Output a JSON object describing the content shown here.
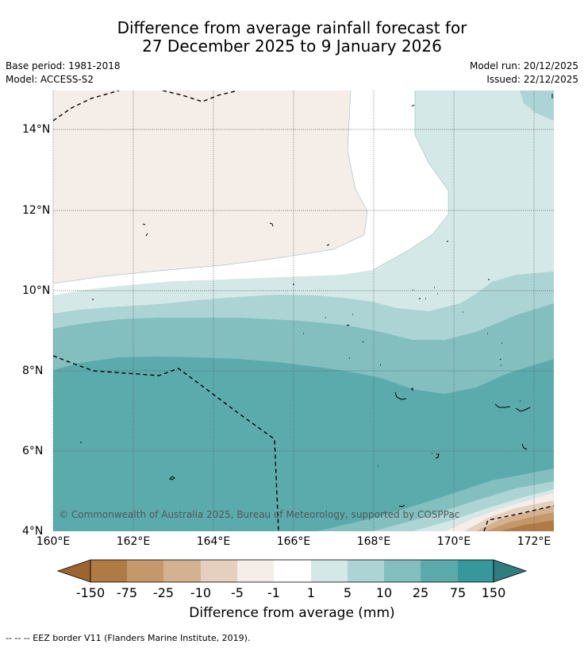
{
  "title": {
    "line1": "Difference from average rainfall forecast for",
    "line2": "27 December 2025 to 9 January 2026"
  },
  "meta": {
    "base_period": "Base period: 1981-2018",
    "model": "Model: ACCESS-S2",
    "model_run": "Model run: 20/12/2025",
    "issued": "Issued: 22/12/2025"
  },
  "map": {
    "lat_labels": [
      "14°N",
      "12°N",
      "10°N",
      "8°N",
      "6°N",
      "4°N"
    ],
    "lon_labels": [
      "160°E",
      "162°E",
      "164°E",
      "166°E",
      "168°E",
      "170°E",
      "172°E"
    ],
    "copyright": "© Commonwealth of Australia 2025, Bureau of Meteorology, supported by COSPPac",
    "band_colors": {
      "dry_75_150": "#b07a45",
      "dry_25_75": "#c4986b",
      "dry_10_25": "#d4b191",
      "dry_5_10": "#e5d0bf",
      "dry_1_5": "#f4ede8",
      "neutral": "#ffffff",
      "wet_1_5": "#d4e8e7",
      "wet_5_10": "#acd4d4",
      "wet_10_25": "#83bfbf",
      "wet_25_75": "#5babad"
    }
  },
  "colorbar": {
    "labels": [
      "-150",
      "-75",
      "-25",
      "-10",
      "-5",
      "-1",
      "1",
      "5",
      "10",
      "25",
      "75",
      "150"
    ],
    "colors": [
      "#9b6430",
      "#b07a45",
      "#c4986b",
      "#d4b191",
      "#e5d0bf",
      "#f4ede8",
      "#ffffff",
      "#d4e8e7",
      "#acd4d4",
      "#83bfbf",
      "#5babad",
      "#36989a",
      "#2f7d7f"
    ],
    "title": "Difference from average (mm)"
  },
  "legend": {
    "eez": "--  --  -- EEZ border V11 (Flanders Marine Institute, 2019)."
  }
}
